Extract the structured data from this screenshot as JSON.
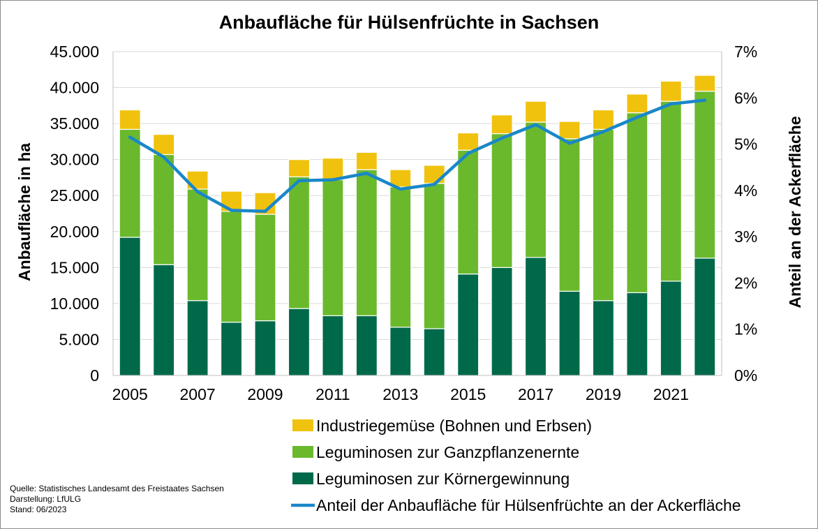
{
  "chart_data": {
    "type": "bar",
    "stacked": true,
    "title": "Anbaufläche für Hülsenfrüchte in Sachsen",
    "ylabel": "Anbaufläche in ha",
    "y2label": "Anteil an der Ackerfläche",
    "ylim": [
      0,
      45000
    ],
    "y2lim": [
      0,
      7
    ],
    "yticks": [
      "0",
      "5.000",
      "10.000",
      "15.000",
      "20.000",
      "25.000",
      "30.000",
      "35.000",
      "40.000",
      "45.000"
    ],
    "y2ticks": [
      "0%",
      "1%",
      "2%",
      "3%",
      "4%",
      "5%",
      "6%",
      "7%"
    ],
    "grid": true,
    "legend_position": "bottom",
    "categories": [
      "2005",
      "2006",
      "2007",
      "2008",
      "2009",
      "2010",
      "2011",
      "2012",
      "2013",
      "2014",
      "2015",
      "2016",
      "2017",
      "2018",
      "2019",
      "2020",
      "2021",
      "2022"
    ],
    "xtick_labels": [
      "2005",
      "2007",
      "2009",
      "2011",
      "2013",
      "2015",
      "2017",
      "2019",
      "2021"
    ],
    "series": [
      {
        "name": "Leguminosen zur Körnergewinnung",
        "color": "#00694a",
        "values": [
          19200,
          15400,
          10400,
          7400,
          7600,
          9300,
          8300,
          8300,
          6700,
          6500,
          14100,
          15000,
          16400,
          11700,
          10400,
          11500,
          13100,
          16300
        ]
      },
      {
        "name": "Leguminosen zur Ganzpflanzenernte",
        "color": "#6ab92d",
        "values": [
          15000,
          15300,
          15500,
          15400,
          14800,
          18300,
          18900,
          20300,
          19500,
          20200,
          17200,
          18600,
          18800,
          21200,
          23800,
          25000,
          25000,
          23200
        ]
      },
      {
        "name": "Industriegemüse (Bohnen und Erbsen)",
        "color": "#f0c20e",
        "values": [
          2700,
          2800,
          2500,
          2800,
          3000,
          2400,
          3000,
          2400,
          2400,
          2500,
          2400,
          2600,
          2900,
          2400,
          2700,
          2600,
          2800,
          2200
        ]
      }
    ],
    "line_series": {
      "name": "Anteil der Anbaufläche für Hülsenfrüchte an der Ackerfläche",
      "color": "#1a87c9",
      "axis": "right",
      "values": [
        5.15,
        4.72,
        3.97,
        3.57,
        3.55,
        4.21,
        4.23,
        4.37,
        4.03,
        4.13,
        4.8,
        5.13,
        5.42,
        5.02,
        5.27,
        5.58,
        5.87,
        5.95
      ]
    },
    "legend_order": [
      "Industriegemüse (Bohnen und Erbsen)",
      "Leguminosen zur Ganzpflanzenernte",
      "Leguminosen zur Körnergewinnung",
      "Anteil der Anbaufläche für Hülsenfrüchte an der Ackerfläche"
    ]
  },
  "source_note": {
    "line1": "Quelle: Statistisches Landesamt des Freistaates Sachsen",
    "line2": "Darstellung: LfULG",
    "line3": "Stand: 06/2023"
  }
}
